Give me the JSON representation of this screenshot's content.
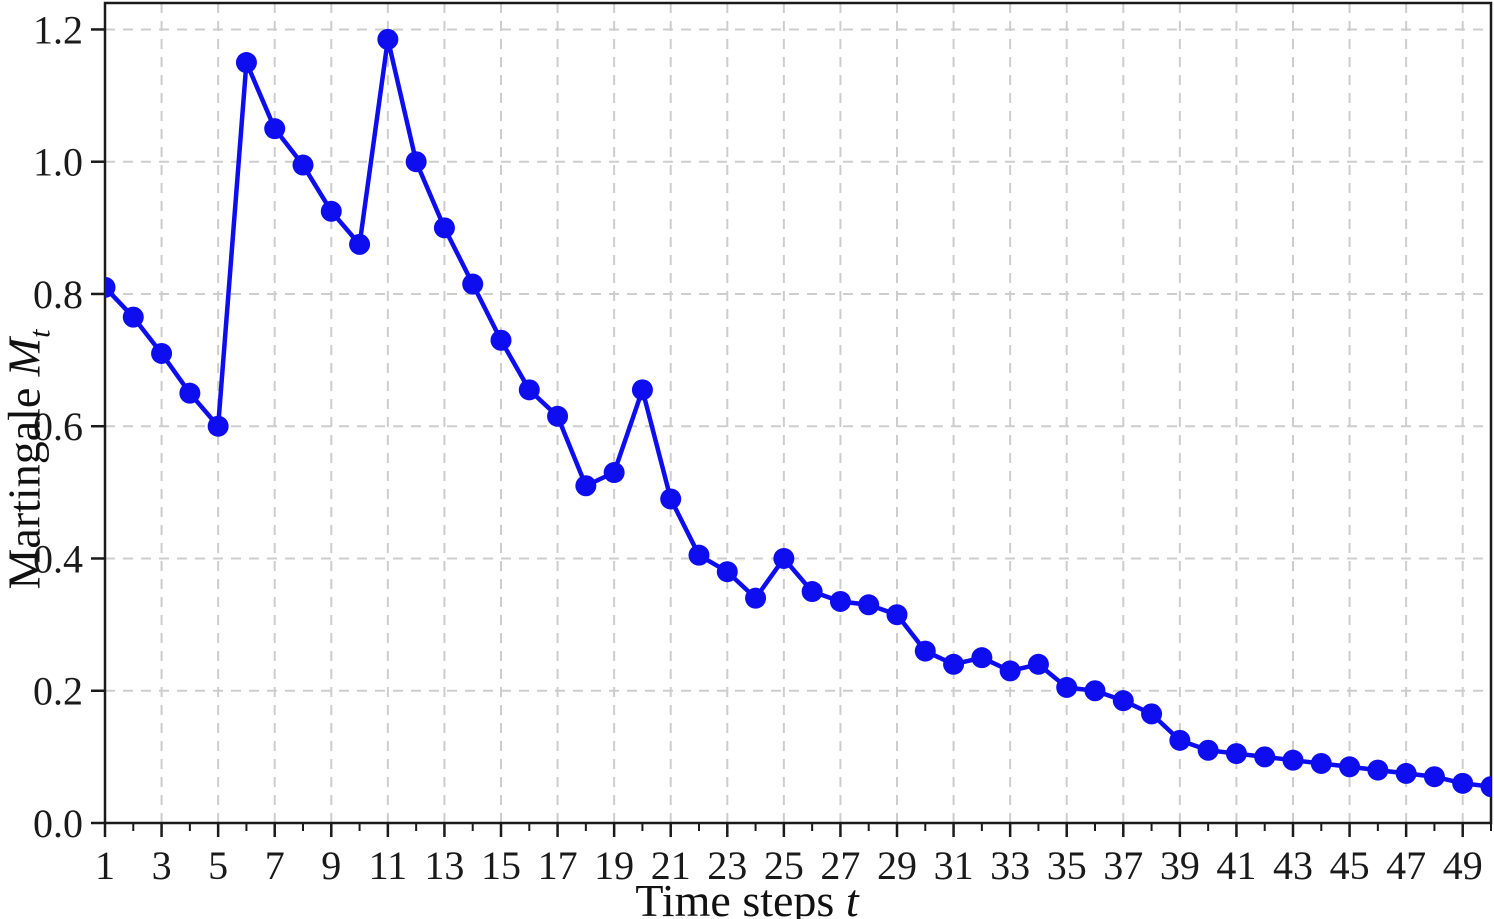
{
  "chart_data": {
    "type": "line",
    "title": "",
    "xlabel_text": "Time steps",
    "xlabel_var": "t",
    "ylabel_text": "Martingale",
    "ylabel_var": "M",
    "ylabel_sub": "t",
    "x": [
      1,
      2,
      3,
      4,
      5,
      6,
      7,
      8,
      9,
      10,
      11,
      12,
      13,
      14,
      15,
      16,
      17,
      18,
      19,
      20,
      21,
      22,
      23,
      24,
      25,
      26,
      27,
      28,
      29,
      30,
      31,
      32,
      33,
      34,
      35,
      36,
      37,
      38,
      39,
      40,
      41,
      42,
      43,
      44,
      45,
      46,
      47,
      48,
      49,
      50
    ],
    "series": [
      {
        "name": "Martingale M_t",
        "values": [
          0.81,
          0.765,
          0.71,
          0.65,
          0.6,
          1.15,
          1.05,
          0.995,
          0.925,
          0.875,
          1.185,
          1.0,
          0.9,
          0.815,
          0.73,
          0.655,
          0.615,
          0.51,
          0.53,
          0.655,
          0.49,
          0.405,
          0.38,
          0.34,
          0.4,
          0.35,
          0.335,
          0.33,
          0.315,
          0.26,
          0.24,
          0.25,
          0.23,
          0.24,
          0.205,
          0.2,
          0.185,
          0.165,
          0.125,
          0.11,
          0.105,
          0.1,
          0.095,
          0.09,
          0.085,
          0.08,
          0.075,
          0.07,
          0.06,
          0.055
        ]
      }
    ],
    "xlim": [
      1,
      50
    ],
    "ylim": [
      0,
      1.24
    ],
    "xticks": [
      1,
      3,
      5,
      7,
      9,
      11,
      13,
      15,
      17,
      19,
      21,
      23,
      25,
      27,
      29,
      31,
      33,
      35,
      37,
      39,
      41,
      43,
      45,
      47,
      49
    ],
    "xticks_minor": [
      2,
      4,
      6,
      8,
      10,
      12,
      14,
      16,
      18,
      20,
      22,
      24,
      26,
      28,
      30,
      32,
      34,
      36,
      38,
      40,
      42,
      44,
      46,
      48,
      50
    ],
    "yticks": [
      0.0,
      0.2,
      0.4,
      0.6,
      0.8,
      1.0,
      1.2
    ],
    "ytick_labels": [
      "0.0",
      "0.2",
      "0.4",
      "0.6",
      "0.8",
      "1.0",
      "1.2"
    ],
    "grid": true,
    "grid_style": "dashed",
    "legend": false,
    "line_color": "#0d0df0",
    "grid_color": "#cdcdcd",
    "axis_color": "#1a1a1a",
    "marker": "circle"
  }
}
